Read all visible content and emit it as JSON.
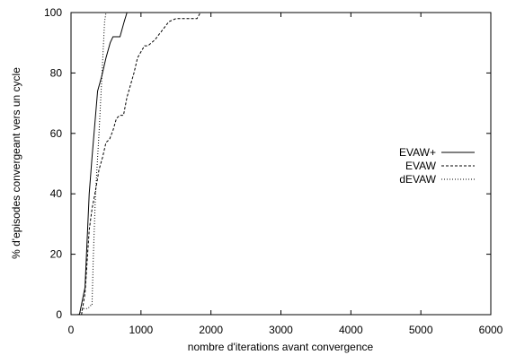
{
  "chart_data": {
    "type": "line",
    "title": "",
    "xlabel": "nombre d'iterations avant convergence",
    "ylabel": "% d'episodes convergeant vers un cycle",
    "xlim": [
      0,
      6000
    ],
    "ylim": [
      0,
      100
    ],
    "x_ticks": [
      "0",
      "1000",
      "2000",
      "3000",
      "4000",
      "5000",
      "6000"
    ],
    "y_ticks": [
      "0",
      "20",
      "40",
      "60",
      "80",
      "100"
    ],
    "grid": false,
    "legend_placement": "right",
    "series": [
      {
        "name": "EVAW+",
        "style": "solid",
        "color": "#000000",
        "points": [
          [
            120,
            0
          ],
          [
            200,
            9
          ],
          [
            260,
            40
          ],
          [
            300,
            52
          ],
          [
            380,
            74
          ],
          [
            440,
            79
          ],
          [
            500,
            85
          ],
          [
            560,
            90
          ],
          [
            600,
            92
          ],
          [
            700,
            92
          ],
          [
            760,
            97
          ],
          [
            800,
            100
          ]
        ]
      },
      {
        "name": "EVAW",
        "style": "dashed",
        "color": "#000000",
        "points": [
          [
            150,
            0
          ],
          [
            200,
            7
          ],
          [
            260,
            28
          ],
          [
            300,
            35
          ],
          [
            350,
            41
          ],
          [
            400,
            48
          ],
          [
            450,
            52
          ],
          [
            500,
            57
          ],
          [
            550,
            58
          ],
          [
            600,
            61
          ],
          [
            650,
            65
          ],
          [
            700,
            66
          ],
          [
            750,
            66
          ],
          [
            800,
            72
          ],
          [
            850,
            76
          ],
          [
            900,
            80
          ],
          [
            950,
            85
          ],
          [
            1000,
            87
          ],
          [
            1050,
            89
          ],
          [
            1100,
            89
          ],
          [
            1150,
            90
          ],
          [
            1200,
            91
          ],
          [
            1300,
            94
          ],
          [
            1400,
            97
          ],
          [
            1500,
            98
          ],
          [
            1600,
            98
          ],
          [
            1700,
            98
          ],
          [
            1800,
            98
          ],
          [
            1850,
            100
          ],
          [
            1900,
            100
          ],
          [
            2000,
            100
          ]
        ]
      },
      {
        "name": "dEVAW",
        "style": "dotted",
        "color": "#000000",
        "points": [
          [
            100,
            0
          ],
          [
            180,
            2
          ],
          [
            240,
            2
          ],
          [
            280,
            3
          ],
          [
            300,
            3
          ],
          [
            320,
            20
          ],
          [
            350,
            40
          ],
          [
            400,
            60
          ],
          [
            450,
            83
          ],
          [
            480,
            97
          ],
          [
            500,
            100
          ]
        ]
      }
    ]
  }
}
